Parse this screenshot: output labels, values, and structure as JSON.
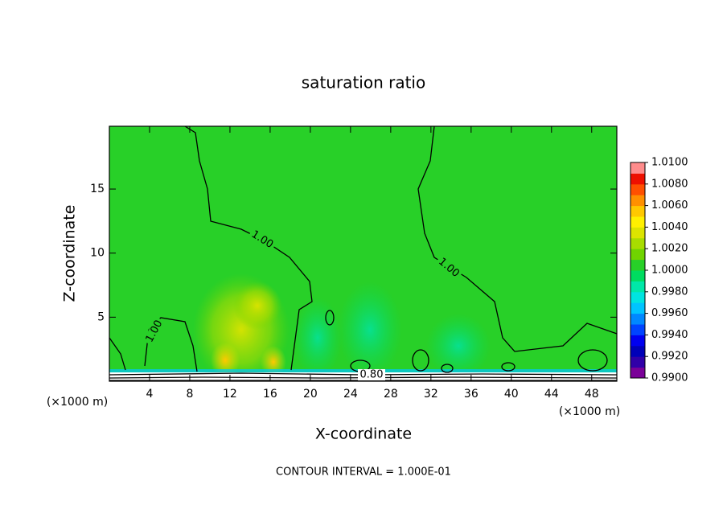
{
  "chart_data": {
    "type": "contour",
    "title": "saturation ratio",
    "xlabel": "X-coordinate",
    "ylabel": "Z-coordinate",
    "x_unit_labels": [
      "(×1000 m)",
      "(×1000 m)"
    ],
    "xlim": [
      0,
      50.5
    ],
    "xticks": [
      4,
      8,
      12,
      16,
      20,
      24,
      28,
      32,
      36,
      40,
      44,
      48
    ],
    "ylim": [
      0,
      19.9
    ],
    "yticks": [
      5,
      10,
      15
    ],
    "contour_labels": [
      {
        "value": 1,
        "label": "1.00"
      },
      {
        "value": 1,
        "label": "1.00"
      },
      {
        "value": 1,
        "label": "1.00"
      },
      {
        "value": 0.8,
        "label": "0.80"
      }
    ],
    "annotation": "CONTOUR INTERVAL = 1.000E-01",
    "colorbar": {
      "lim": [
        0.99,
        1.01
      ],
      "ticks": [
        {
          "value": 0.99,
          "label": "0.9900"
        },
        {
          "value": 0.992,
          "label": "0.9920"
        },
        {
          "value": 0.994,
          "label": "0.9940"
        },
        {
          "value": 0.996,
          "label": "0.9960"
        },
        {
          "value": 0.998,
          "label": "0.9980"
        },
        {
          "value": 1,
          "label": "1.0000"
        },
        {
          "value": 1.002,
          "label": "1.0020"
        },
        {
          "value": 1.004,
          "label": "1.0040"
        },
        {
          "value": 1.006,
          "label": "1.0060"
        },
        {
          "value": 1.008,
          "label": "1.0080"
        },
        {
          "value": 1.01,
          "label": "1.0100"
        }
      ],
      "levels": [
        0.99,
        0.991,
        0.992,
        0.993,
        0.994,
        0.995,
        0.996,
        0.997,
        0.998,
        0.999,
        1,
        1.001,
        1.002,
        1.003,
        1.004,
        1.005,
        1.006,
        1.007,
        1.008,
        1.009,
        1.01
      ],
      "colors": [
        "#7a0098",
        "#3000a8",
        "#0000b8",
        "#0000f0",
        "#0044ff",
        "#0088ff",
        "#00c4ff",
        "#00e4e0",
        "#00e8a8",
        "#00dc60",
        "#28d028",
        "#70d400",
        "#a8dc00",
        "#dce400",
        "#fff000",
        "#ffc800",
        "#ff9000",
        "#ff5000",
        "#ee1000",
        "#ff8c8c"
      ]
    }
  }
}
